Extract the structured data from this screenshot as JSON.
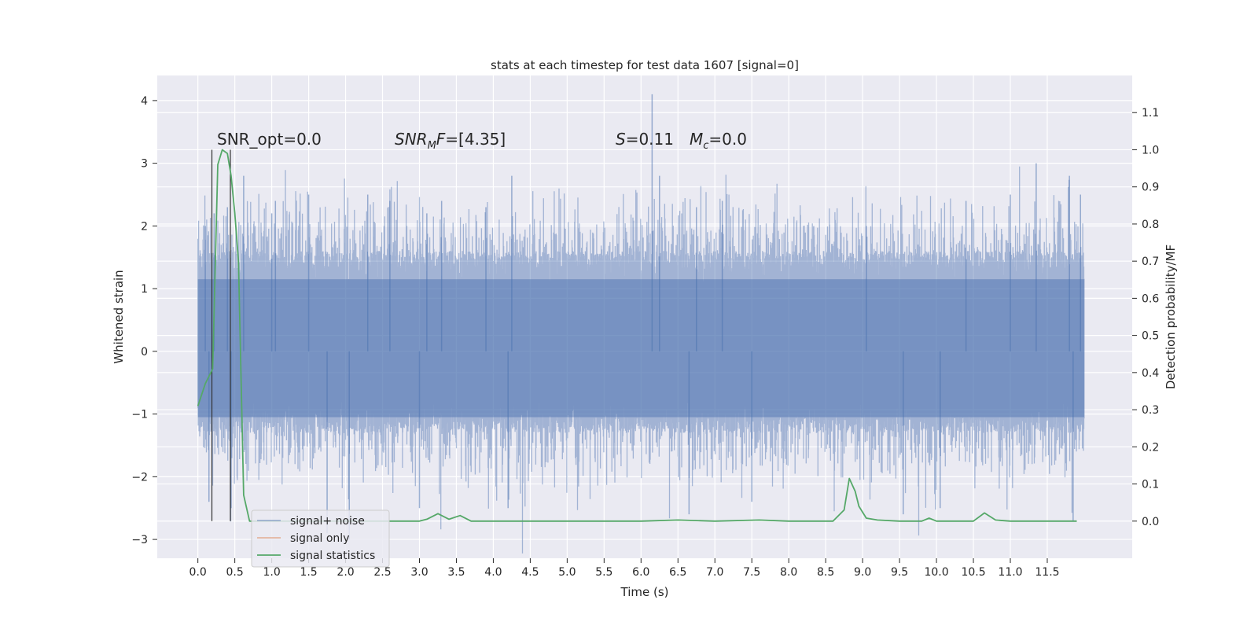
{
  "chart_data": {
    "type": "line",
    "title": "stats at each timestep for test data 1607 [signal=0]",
    "xlabel": "Time (s)",
    "ylabel": "Whitened strain",
    "y2label": "Detection probability/MF",
    "xlim": [
      -0.55,
      12.65
    ],
    "ylim": [
      -3.3,
      4.4
    ],
    "y2lim": [
      -0.1,
      1.2
    ],
    "xticks": [
      0.0,
      0.5,
      1.0,
      1.5,
      2.0,
      2.5,
      3.0,
      3.5,
      4.0,
      4.5,
      5.0,
      5.5,
      6.0,
      6.5,
      7.0,
      7.5,
      8.0,
      8.5,
      9.0,
      9.5,
      10.0,
      10.5,
      11.0,
      11.5
    ],
    "xtick_labels": [
      "0.0",
      "0.5",
      "1.0",
      "1.5",
      "2.0",
      "2.5",
      "3.0",
      "3.5",
      "4.0",
      "4.5",
      "5.0",
      "5.5",
      "6.0",
      "6.5",
      "7.0",
      "7.5",
      "8.0",
      "8.5",
      "9.0",
      "9.5",
      "10.0",
      "10.5",
      "11.0",
      "11.5"
    ],
    "yticks": [
      -3,
      -2,
      -1,
      0,
      1,
      2,
      3,
      4
    ],
    "ytick_labels": [
      "−3",
      "−2",
      "−1",
      "0",
      "1",
      "2",
      "3",
      "4"
    ],
    "y2ticks": [
      0.0,
      0.1,
      0.2,
      0.3,
      0.4,
      0.5,
      0.6,
      0.7,
      0.8,
      0.9,
      1.0,
      1.1
    ],
    "y2tick_labels": [
      "0.0",
      "0.1",
      "0.2",
      "0.3",
      "0.4",
      "0.5",
      "0.6",
      "0.7",
      "0.8",
      "0.9",
      "1.0",
      "1.1"
    ],
    "grid": true,
    "legend_placement": "lower-left",
    "annotations": [
      {
        "text": "SNR_opt=0.0"
      },
      {
        "text": "SNR_MF=[4.35]",
        "main": "SNR",
        "sub": "M",
        "tail": "F=[4.35]"
      },
      {
        "text": "S=0.11",
        "main": "S",
        "tail": "=0.11"
      },
      {
        "text": "M_c=0.0",
        "main": "M",
        "sub": "c",
        "tail": "=0.0"
      }
    ],
    "vertical_markers_x": [
      0.19,
      0.44
    ],
    "series": [
      {
        "name": "signal+ noise",
        "color": "#4c72b0",
        "axis": "left",
        "t_range": [
          0.0,
          12.0
        ],
        "typical_envelope": [
          -1.3,
          1.6
        ],
        "spikes": [
          {
            "x": 0.1,
            "y": 2.0
          },
          {
            "x": 0.22,
            "y": 2.2
          },
          {
            "x": 0.4,
            "y": 2.3
          },
          {
            "x": 0.62,
            "y": 2.8
          },
          {
            "x": 1.0,
            "y": 2.2
          },
          {
            "x": 1.05,
            "y": 2.4
          },
          {
            "x": 1.5,
            "y": 2.5
          },
          {
            "x": 2.3,
            "y": 2.5
          },
          {
            "x": 2.6,
            "y": 2.4
          },
          {
            "x": 3.1,
            "y": 2.2
          },
          {
            "x": 3.3,
            "y": 2.4
          },
          {
            "x": 3.9,
            "y": 2.3
          },
          {
            "x": 4.25,
            "y": 2.8
          },
          {
            "x": 6.15,
            "y": 4.1
          },
          {
            "x": 6.25,
            "y": 2.8
          },
          {
            "x": 6.75,
            "y": 2.3
          },
          {
            "x": 7.1,
            "y": 2.4
          },
          {
            "x": 9.05,
            "y": 2.0
          },
          {
            "x": 10.4,
            "y": 2.4
          },
          {
            "x": 11.0,
            "y": 2.5
          },
          {
            "x": 11.35,
            "y": 3.0
          },
          {
            "x": 11.8,
            "y": 2.8
          },
          {
            "x": 11.95,
            "y": 2.5
          },
          {
            "x": 0.15,
            "y": -2.4
          },
          {
            "x": 0.45,
            "y": -2.5
          },
          {
            "x": 1.75,
            "y": -2.9
          },
          {
            "x": 2.05,
            "y": -3.0
          },
          {
            "x": 3.0,
            "y": -2.5
          },
          {
            "x": 4.2,
            "y": -2.5
          },
          {
            "x": 6.65,
            "y": -2.6
          },
          {
            "x": 7.5,
            "y": -2.4
          },
          {
            "x": 9.55,
            "y": -2.6
          },
          {
            "x": 10.05,
            "y": -2.5
          },
          {
            "x": 11.85,
            "y": -2.7
          }
        ]
      },
      {
        "name": "signal only",
        "color": "#dd8452",
        "axis": "left",
        "x": [],
        "y": []
      },
      {
        "name": "signal statistics",
        "color": "#55a868",
        "axis": "right",
        "x": [
          0.0,
          0.1,
          0.2,
          0.27,
          0.33,
          0.4,
          0.45,
          0.5,
          0.55,
          0.62,
          0.7,
          1.0,
          2.0,
          3.0,
          3.1,
          3.25,
          3.4,
          3.55,
          3.7,
          4.0,
          5.0,
          6.0,
          6.5,
          7.0,
          7.6,
          8.0,
          8.6,
          8.75,
          8.82,
          8.9,
          8.95,
          9.05,
          9.2,
          9.5,
          9.8,
          9.9,
          10.0,
          10.5,
          10.65,
          10.8,
          11.0,
          11.5,
          11.9
        ],
        "y": [
          0.31,
          0.37,
          0.41,
          0.96,
          1.0,
          0.99,
          0.93,
          0.83,
          0.7,
          0.07,
          0.0,
          0.0,
          0.0,
          0.0,
          0.005,
          0.02,
          0.005,
          0.015,
          0.0,
          0.0,
          0.0,
          0.0,
          0.003,
          0.0,
          0.003,
          0.0,
          0.0,
          0.03,
          0.115,
          0.08,
          0.04,
          0.008,
          0.003,
          0.0,
          0.0,
          0.008,
          0.0,
          0.0,
          0.022,
          0.003,
          0.0,
          0.0,
          0.0
        ]
      }
    ]
  }
}
